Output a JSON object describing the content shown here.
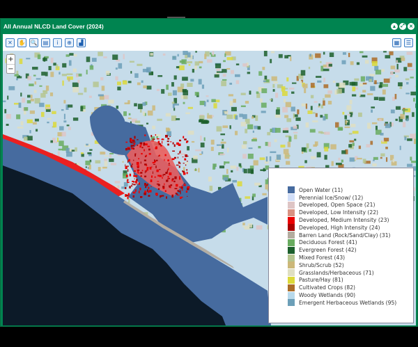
{
  "window": {
    "title": "All Annual NLCD Land Cover (2024)",
    "controls": [
      "minimize",
      "restore",
      "close"
    ]
  },
  "toolbar": {
    "tools": [
      {
        "name": "full-extent-icon",
        "glyph": "✕"
      },
      {
        "name": "pan-icon",
        "glyph": "✋"
      },
      {
        "name": "zoom-in-icon",
        "glyph": "🔍"
      },
      {
        "name": "layers-icon",
        "glyph": "▤"
      },
      {
        "name": "info-icon",
        "glyph": "i"
      },
      {
        "name": "download-icon",
        "glyph": "⊕"
      },
      {
        "name": "chart-icon",
        "glyph": "▟"
      }
    ],
    "right": [
      {
        "name": "calendar-icon",
        "glyph": "▦"
      },
      {
        "name": "legend-list-icon",
        "glyph": "☰"
      }
    ]
  },
  "map": {
    "zoom_in": "+",
    "zoom_out": "−",
    "colors": {
      "water": "#466b9f",
      "sea": "#0c1a28",
      "wetland": "#bad8ea",
      "beach": "#b3ada3"
    }
  },
  "legend": [
    {
      "label": "Open Water (11)",
      "color": "#466b9f"
    },
    {
      "label": "Perennial Ice/Snow/ (12)",
      "color": "#d1def8"
    },
    {
      "label": "Developed, Open Space (21)",
      "color": "#dec5c5"
    },
    {
      "label": "Developed, Low Intensity (22)",
      "color": "#d99282"
    },
    {
      "label": "Developed, Medium Intensity (23)",
      "color": "#eb0000"
    },
    {
      "label": "Developed, High Intensity (24)",
      "color": "#ab0000"
    },
    {
      "label": "Barren Land (Rock/Sand/Clay) (31)",
      "color": "#b3ac9f"
    },
    {
      "label": "Deciduous Forest (41)",
      "color": "#68ab5f"
    },
    {
      "label": "Evergreen Forest (42)",
      "color": "#1c5f2c"
    },
    {
      "label": "Mixed Forest (43)",
      "color": "#b5c58f"
    },
    {
      "label": "Shrub/Scrub (52)",
      "color": "#ccb879"
    },
    {
      "label": "Grasslands/Herbaceous (71)",
      "color": "#dfdfc2"
    },
    {
      "label": "Pasture/Hay (81)",
      "color": "#dcd939"
    },
    {
      "label": "Cultivated Crops (82)",
      "color": "#ab6c28"
    },
    {
      "label": "Woody Wetlands (90)",
      "color": "#b8d9eb"
    },
    {
      "label": "Emergent Herbaceous Wetlands (95)",
      "color": "#6c9fb8"
    }
  ]
}
